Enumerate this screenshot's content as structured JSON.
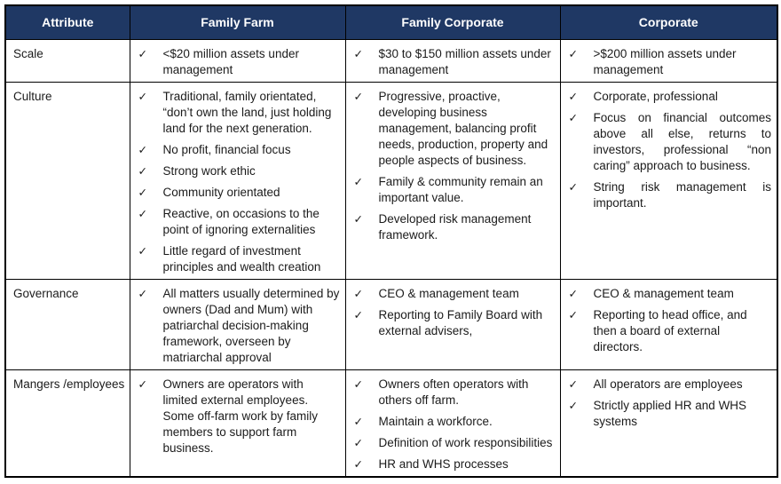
{
  "table": {
    "check_glyph": "✓",
    "colors": {
      "header_bg": "#1F3864",
      "header_text": "#FFFFFF",
      "border": "#000000",
      "body_text": "#1B1B1B"
    },
    "header": {
      "columns": [
        "Attribute",
        "Family Farm",
        "Family Corporate",
        "Corporate"
      ]
    },
    "rows": [
      {
        "attribute": "Scale",
        "family_farm": [
          {
            "text": "<$20 million assets under management"
          }
        ],
        "family_corporate": [
          {
            "text": "$30 to $150 million assets under management"
          }
        ],
        "corporate": [
          {
            "text": ">$200 million assets under management"
          }
        ]
      },
      {
        "attribute": "Culture",
        "family_farm": [
          {
            "text": "Traditional, family orientated, “don’t own the land, just holding land for the next generation."
          },
          {
            "text": "No profit, financial focus"
          },
          {
            "text": "Strong work ethic"
          },
          {
            "text": "Community orientated"
          },
          {
            "text": "Reactive, on occasions to the point of ignoring externalities"
          },
          {
            "text": "Little regard of investment principles and wealth creation"
          }
        ],
        "family_corporate": [
          {
            "text": "Progressive, proactive, developing business management, balancing profit needs, production, property and people aspects of business."
          },
          {
            "text": "Family & community remain an important value."
          },
          {
            "text": "Developed risk management framework."
          }
        ],
        "corporate": [
          {
            "text": "Corporate, professional"
          },
          {
            "text": "Focus on financial outcomes above all else, returns to investors, professional “non caring” approach to business.",
            "justify": true
          },
          {
            "text": "String risk management is important.",
            "justify": true
          }
        ]
      },
      {
        "attribute": "Governance",
        "family_farm": [
          {
            "text": "All matters usually determined by owners (Dad and Mum) with patriarchal decision-making framework, overseen by matriarchal approval"
          }
        ],
        "family_corporate": [
          {
            "text": "CEO & management team"
          },
          {
            "text": "Reporting to Family Board with external advisers,"
          }
        ],
        "corporate": [
          {
            "text": "CEO & management team"
          },
          {
            "text": "Reporting to head office, and then a board of external directors."
          }
        ]
      },
      {
        "attribute": "Mangers /employees",
        "family_farm": [
          {
            "text": "Owners are operators with limited external employees. Some off-farm work by family members to support farm business."
          }
        ],
        "family_corporate": [
          {
            "text": "Owners often operators with others off farm."
          },
          {
            "text": "Maintain a workforce."
          },
          {
            "text": "Definition of work responsibilities"
          },
          {
            "text": "HR and WHS processes"
          }
        ],
        "corporate": [
          {
            "text": "All operators are employees"
          },
          {
            "text": "Strictly applied HR and WHS systems"
          }
        ]
      }
    ]
  }
}
